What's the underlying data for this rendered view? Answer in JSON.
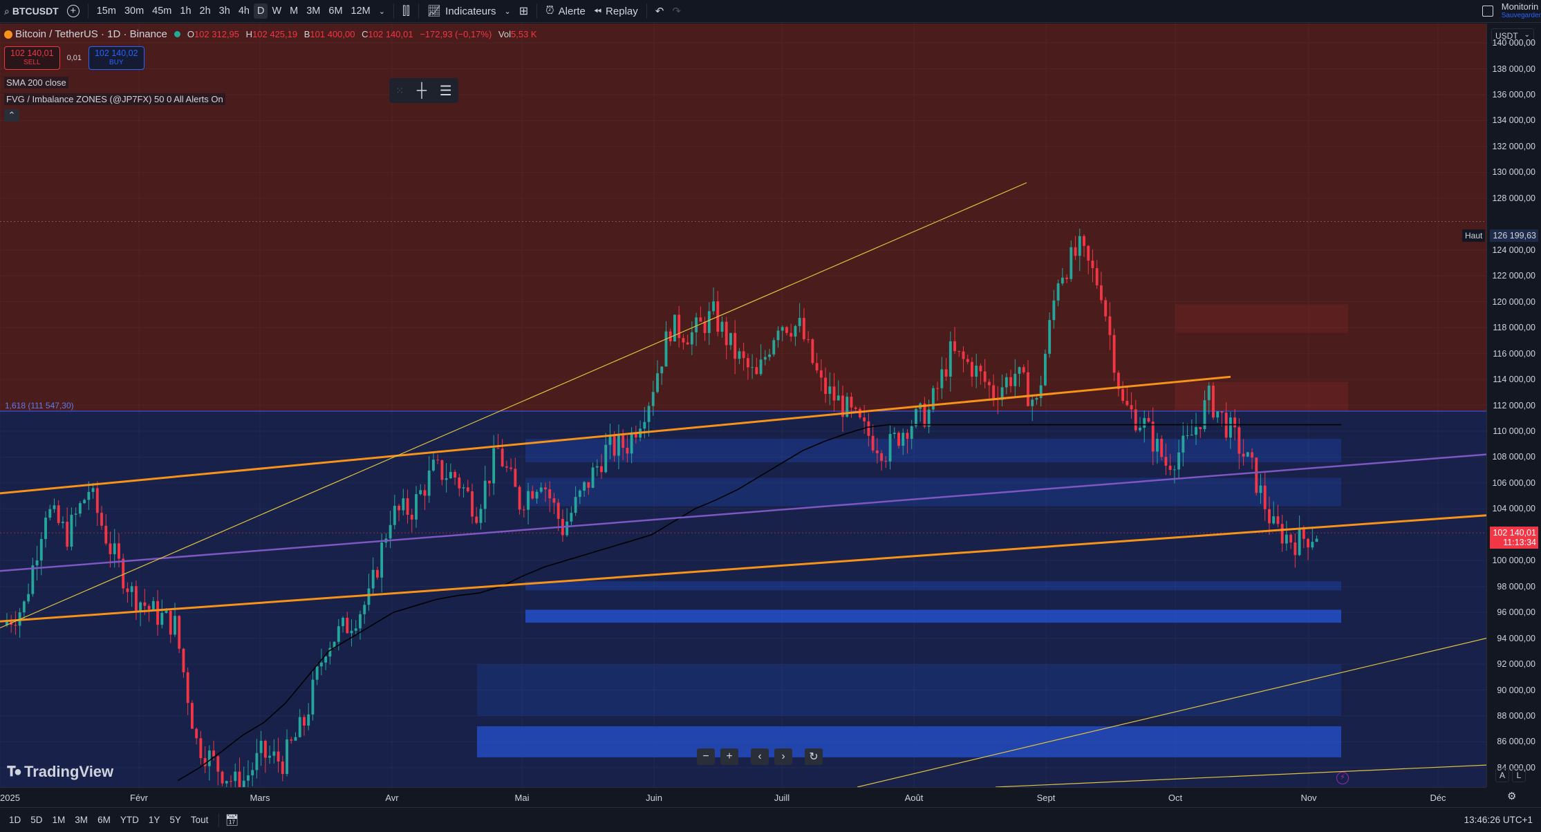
{
  "toolbar": {
    "symbol": "BTCUSDT",
    "timeframes": [
      "15m",
      "30m",
      "45m",
      "1h",
      "2h",
      "3h",
      "4h",
      "D",
      "W",
      "M",
      "3M",
      "6M",
      "12M"
    ],
    "active_timeframe": "D",
    "indicators_label": "Indicateurs",
    "alert_label": "Alerte",
    "replay_label": "Replay",
    "account_label": "Monitorin",
    "account_sub": "Sauvegarder"
  },
  "legend": {
    "title": "Bitcoin / TetherUS · 1D · Binance",
    "open_key": "O",
    "open": "102 312,95",
    "high_key": "H",
    "high": "102 425,19",
    "low_key": "B",
    "low": "101 400,00",
    "close_key": "C",
    "close": "102 140,01",
    "change": "−172,93 (−0,17%)",
    "vol_key": "Vol",
    "vol": "5,53 K"
  },
  "trade": {
    "sell_price": "102 140,01",
    "sell_label": "SELL",
    "spread": "0,01",
    "buy_price": "102 140,02",
    "buy_label": "BUY"
  },
  "indicators": {
    "sma": "SMA 200 close",
    "fvg": "FVG / Imbalance ZONES (@JP7FX) 50 0 All Alerts On"
  },
  "fib_label": "1,618 (111 547,30)",
  "price_axis": {
    "currency": "USDT",
    "ticks": [
      "140 000,00",
      "138 000,00",
      "136 000,00",
      "134 000,00",
      "132 000,00",
      "130 000,00",
      "128 000,00",
      "124 000,00",
      "122 000,00",
      "120 000,00",
      "118 000,00",
      "116 000,00",
      "114 000,00",
      "112 000,00",
      "110 000,00",
      "108 000,00",
      "106 000,00",
      "104 000,00",
      "100 000,00",
      "98 000,00",
      "96 000,00",
      "94 000,00",
      "92 000,00",
      "90 000,00",
      "88 000,00",
      "86 000,00",
      "84 000,00"
    ],
    "high_label": "Haut",
    "high_value": "126 199,63",
    "last_price": "102 140,01",
    "countdown": "11:13:34"
  },
  "time_axis": [
    "2025",
    "Févr",
    "Mars",
    "Avr",
    "Mai",
    "Juin",
    "Juill",
    "Août",
    "Sept",
    "Oct",
    "Nov",
    "Déc"
  ],
  "bottom": {
    "ranges": [
      "1D",
      "5D",
      "1M",
      "3M",
      "6M",
      "YTD",
      "1Y",
      "5Y",
      "Tout"
    ],
    "clock": "13:46:26 UTC+1",
    "auto_label": "A",
    "log_label": "L"
  },
  "logo": "TradingView",
  "colors": {
    "up": "#26a69a",
    "down": "#f23645",
    "premium_zone": "#4a1c1c",
    "discount_zone": "#17214a",
    "orange_line": "#f7931a",
    "purple_line": "#7e57c2",
    "yellow_line": "#e0c341"
  },
  "chart_data": {
    "type": "candlestick",
    "title": "Bitcoin / TetherUS · 1D · Binance",
    "ylim": [
      82500,
      141500
    ],
    "x_months": [
      "2025",
      "Févr",
      "Mars",
      "Avr",
      "Mai",
      "Juin",
      "Juill",
      "Août",
      "Sept",
      "Oct",
      "Nov",
      "Déc"
    ],
    "close_path_weekly": [
      95000,
      96500,
      104000,
      102000,
      105500,
      101000,
      97500,
      96000,
      95000,
      86000,
      84000,
      82500,
      85000,
      84500,
      87500,
      93500,
      95000,
      97000,
      103500,
      104000,
      107000,
      106500,
      104000,
      108500,
      104500,
      106500,
      102500,
      105500,
      108500,
      109000,
      112500,
      118000,
      117500,
      119000,
      116000,
      114000,
      118500,
      118000,
      113500,
      112000,
      110000,
      108500,
      110500,
      111500,
      116000,
      115000,
      113000,
      114500,
      112000,
      122000,
      124000,
      121000,
      112000,
      110500,
      107500,
      109000,
      112500,
      110000,
      107000,
      102500,
      101500,
      102140
    ],
    "sma200_weekly": [
      null,
      null,
      null,
      null,
      null,
      null,
      null,
      null,
      83000,
      84000,
      85200,
      86500,
      87500,
      89000,
      91000,
      93000,
      94000,
      95000,
      96000,
      96500,
      97000,
      97300,
      97500,
      98000,
      98800,
      99500,
      100000,
      100500,
      101000,
      101500,
      102000,
      103000,
      104000,
      104700,
      105500,
      106500,
      107500,
      108500,
      109200,
      109800,
      110300,
      110500
    ],
    "levels": {
      "fib_1_618": 111547.3,
      "session_high": 126199.63,
      "last": 102140.01
    }
  }
}
